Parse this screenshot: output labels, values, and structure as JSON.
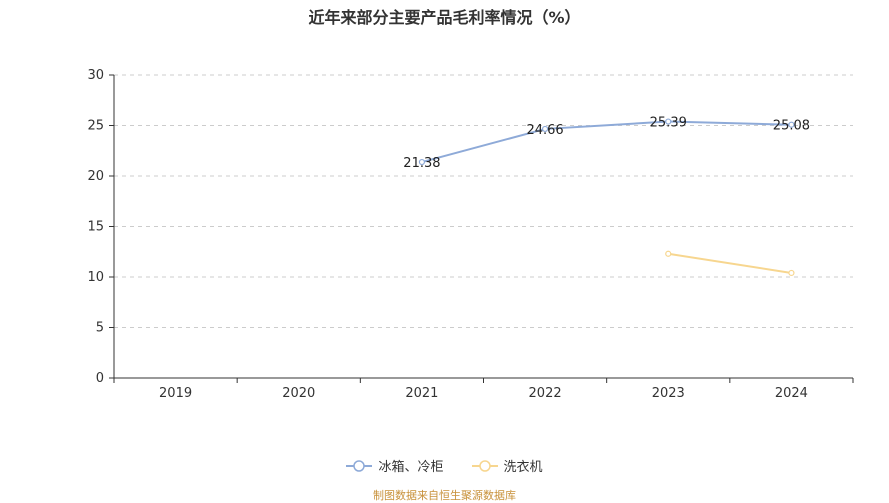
{
  "chart_data": {
    "type": "line",
    "title": "近年来部分主要产品毛利率情况（%）",
    "categories": [
      "2019",
      "2020",
      "2021",
      "2022",
      "2023",
      "2024"
    ],
    "ylim": [
      0,
      30
    ],
    "yticks": [
      0,
      5,
      10,
      15,
      20,
      25,
      30
    ],
    "grid": true,
    "legend_position": "bottom",
    "series": [
      {
        "name": "冰箱、冷柜",
        "color": "#8eaad8",
        "values": [
          null,
          null,
          21.38,
          24.66,
          25.39,
          25.08
        ],
        "show_labels": true
      },
      {
        "name": "洗衣机",
        "color": "#f7d68f",
        "values": [
          null,
          null,
          null,
          null,
          12.3,
          10.4
        ],
        "show_labels": false
      }
    ]
  },
  "source": "制图数据来自恒生聚源数据库"
}
